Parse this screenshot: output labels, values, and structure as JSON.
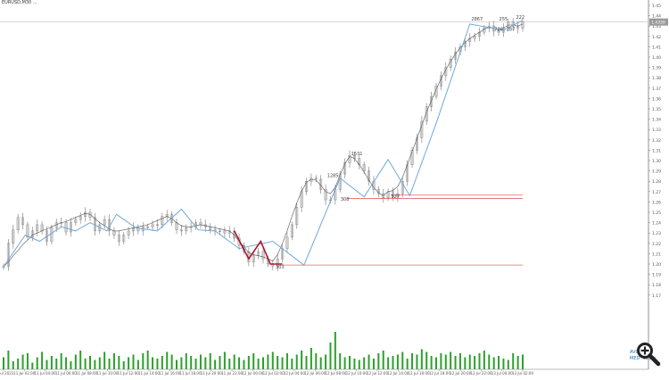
{
  "header": {
    "symbol": "EURUSD,M30",
    "info": "..."
  },
  "panel": {
    "line1": "AVG",
    "line2": "MED: 323 p"
  },
  "colors": {
    "candle": "#8a8a8a",
    "zigzag_blue": "#6fa8dc",
    "zigzag_red": "#b0142a",
    "level_red": "#e06666",
    "volume": "#2ca02c",
    "grid": "#cfcfcf",
    "text": "#444444"
  },
  "chart_data": {
    "type": "line",
    "title": "",
    "xlabel": "",
    "ylabel": "",
    "ylim": [
      1.15,
      1.45
    ],
    "x_ticks": [
      "11 Jul 2023",
      "11 Jul 02:00",
      "11 Jul 04:00",
      "11 Jul 06:00",
      "11 Jul 08:00",
      "11 Jul 10:00",
      "11 Jul 12:00",
      "11 Jul 14:00",
      "11 Jul 16:00",
      "11 Jul 18:00",
      "11 Jul 20:00",
      "11 Jul 22:00",
      "12 Jul 00:00",
      "12 Jul 02:00",
      "12 Jul 04:00",
      "12 Jul 06:00",
      "12 Jul 08:00",
      "12 Jul 10:00",
      "12 Jul 12:00",
      "12 Jul 14:00",
      "12 Jul 16:00",
      "12 Jul 18:00",
      "12 Jul 20:00",
      "12 Jul 22:00",
      "13 Jul 00:00",
      "13 Jul 02:00"
    ],
    "y_ticks": [
      1.45,
      1.44,
      1.43,
      1.42,
      1.41,
      1.4,
      1.39,
      1.38,
      1.37,
      1.36,
      1.35,
      1.34,
      1.33,
      1.32,
      1.31,
      1.3,
      1.29,
      1.28,
      1.27,
      1.26,
      1.25,
      1.24,
      1.23,
      1.22,
      1.21,
      1.2,
      1.19,
      1.18,
      1.17
    ],
    "current_price": 1.4339,
    "series": [
      {
        "values": [
          1.1975,
          1.22,
          1.233,
          1.245,
          1.238,
          1.226,
          1.232,
          1.238,
          1.232,
          1.222,
          1.235,
          1.24,
          1.24,
          1.231,
          1.24,
          1.243,
          1.246,
          1.25,
          1.245,
          1.232,
          1.238,
          1.243,
          1.232,
          1.228,
          1.222,
          1.228,
          1.232,
          1.235,
          1.232,
          1.236,
          1.236,
          1.238,
          1.238,
          1.246,
          1.248,
          1.24,
          1.233,
          1.232,
          1.235,
          1.236,
          1.24,
          1.238,
          1.236,
          1.233,
          1.232,
          1.232,
          1.23,
          1.232,
          1.225,
          1.218,
          1.212,
          1.202,
          1.208,
          1.212,
          1.205,
          1.2,
          1.198,
          1.205,
          1.215,
          1.226,
          1.238,
          1.255,
          1.27,
          1.28,
          1.283,
          1.282,
          1.272,
          1.262,
          1.262,
          1.272,
          1.287,
          1.298,
          1.305,
          1.302,
          1.296,
          1.29,
          1.28,
          1.272,
          1.268,
          1.264,
          1.27,
          1.265,
          1.268,
          1.28,
          1.296,
          1.31,
          1.322,
          1.338,
          1.352,
          1.362,
          1.372,
          1.382,
          1.39,
          1.398,
          1.405,
          1.41,
          1.415,
          1.418,
          1.42,
          1.424,
          1.428,
          1.43,
          1.425,
          1.424,
          1.428,
          1.434,
          1.43,
          1.428,
          1.434
        ]
      },
      {
        "values": [
          1.1975,
          1.202,
          1.208,
          1.213,
          1.219,
          1.223,
          1.228,
          1.23,
          1.232,
          1.234,
          1.236,
          1.238,
          1.24,
          1.241,
          1.243,
          1.245,
          1.247,
          1.249,
          1.248,
          1.244,
          1.24,
          1.237,
          1.234,
          1.232,
          1.232,
          1.233,
          1.234,
          1.235,
          1.236,
          1.237,
          1.238,
          1.24,
          1.242,
          1.244,
          1.246,
          1.244,
          1.24,
          1.237,
          1.236,
          1.236,
          1.237,
          1.238,
          1.237,
          1.236,
          1.235,
          1.234,
          1.233,
          1.232,
          1.228,
          1.222,
          1.217,
          1.211,
          1.209,
          1.208,
          1.207,
          1.205,
          1.203,
          1.209,
          1.22,
          1.232,
          1.246,
          1.259,
          1.27,
          1.279,
          1.282,
          1.281,
          1.276,
          1.27,
          1.268,
          1.274,
          1.286,
          1.297,
          1.304,
          1.302,
          1.296,
          1.289,
          1.281,
          1.274,
          1.269,
          1.266,
          1.27,
          1.271,
          1.275,
          1.284,
          1.296,
          1.309,
          1.321,
          1.334,
          1.347,
          1.358,
          1.369,
          1.379,
          1.388,
          1.396,
          1.403,
          1.409,
          1.414,
          1.418,
          1.421,
          1.424,
          1.427,
          1.429,
          1.428,
          1.426,
          1.428,
          1.431,
          1.431,
          1.43,
          1.432
        ]
      },
      {
        "x": [
          0.0,
          4.5,
          7.5,
          12.0,
          15.0,
          18.0,
          21.5,
          23.5,
          27.5,
          32.0,
          37.0,
          40.5,
          44.0,
          49.0,
          56.0,
          62.5,
          70.0,
          75.0,
          80.0,
          84.5,
          90.0,
          97.0,
          104.0,
          108.0
        ],
        "values": [
          1.1975,
          1.228,
          1.222,
          1.236,
          1.232,
          1.24,
          1.232,
          1.248,
          1.235,
          1.232,
          1.253,
          1.233,
          1.232,
          1.215,
          1.222,
          1.199,
          1.283,
          1.265,
          1.301,
          1.266,
          1.336,
          1.432,
          1.426,
          1.4355
        ]
      },
      {
        "x": [
          48.0,
          51.0,
          53.5,
          55.5,
          58.0
        ],
        "values": [
          1.232,
          1.205,
          1.222,
          1.2,
          1.2
        ]
      }
    ],
    "volume": [
      9,
      14,
      6,
      8,
      11,
      12,
      5,
      9,
      13,
      7,
      10,
      8,
      12,
      9,
      6,
      11,
      14,
      8,
      10,
      7,
      9,
      13,
      8,
      12,
      10,
      6,
      9,
      11,
      7,
      12,
      14,
      9,
      8,
      10,
      13,
      11,
      7,
      9,
      12,
      10,
      8,
      11,
      9,
      12,
      7,
      10,
      13,
      8,
      11,
      9,
      7,
      10,
      12,
      8,
      9,
      11,
      13,
      10,
      9,
      12,
      8,
      11,
      14,
      10,
      16,
      12,
      9,
      11,
      20,
      28,
      12,
      9,
      10,
      8,
      7,
      9,
      11,
      8,
      12,
      14,
      9,
      10,
      11,
      13,
      8,
      12,
      11,
      15,
      13,
      10,
      9,
      12,
      11,
      13,
      10,
      12,
      9,
      11,
      10,
      12,
      14,
      11,
      9,
      10,
      8,
      7,
      12,
      10,
      11
    ],
    "annotations": [
      {
        "text": "2867",
        "x": 98.5,
        "y": 1.4355
      },
      {
        "text": "255",
        "x": 104,
        "y": 1.4355
      },
      {
        "text": "222",
        "x": 107.5,
        "y": 1.437
      },
      {
        "text": "726",
        "x": 103,
        "y": 1.4255
      },
      {
        "text": "287",
        "x": 105.5,
        "y": 1.4255
      },
      {
        "text": "1531",
        "x": 73.5,
        "y": 1.305
      },
      {
        "text": "1285",
        "x": 68.5,
        "y": 1.284
      },
      {
        "text": "308",
        "x": 71,
        "y": 1.261
      },
      {
        "text": "327",
        "x": 81.5,
        "y": 1.264
      },
      {
        "text": "303",
        "x": 57.5,
        "y": 1.1955
      }
    ],
    "levels": [
      {
        "value": 1.2666,
        "from_x": 80.5,
        "to_x": 108
      },
      {
        "value": 1.2634,
        "from_x": 71.5,
        "to_x": 108
      },
      {
        "value": 1.199,
        "from_x": 57.5,
        "to_x": 108
      }
    ]
  }
}
